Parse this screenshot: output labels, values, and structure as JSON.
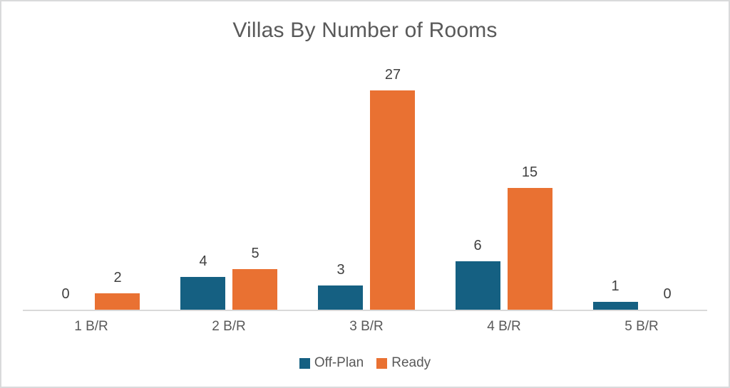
{
  "title": "Villas By Number of Rooms",
  "legend": {
    "items": [
      {
        "label": "Off-Plan",
        "color": "#156082"
      },
      {
        "label": "Ready",
        "color": "#E97132"
      }
    ]
  },
  "chart_data": {
    "type": "bar",
    "title": "Villas By Number of Rooms",
    "categories": [
      "1 B/R",
      "2 B/R",
      "3 B/R",
      "4 B/R",
      "5 B/R"
    ],
    "series": [
      {
        "name": "Off-Plan",
        "color": "#156082",
        "values": [
          0,
          4,
          3,
          6,
          1
        ]
      },
      {
        "name": "Ready",
        "color": "#E97132",
        "values": [
          2,
          5,
          27,
          15,
          0
        ]
      }
    ],
    "xlabel": "",
    "ylabel": "",
    "ylim": [
      0,
      30
    ],
    "grid": false,
    "data_labels": true,
    "legend_position": "bottom"
  },
  "colors": {
    "background": "#FFFFFF",
    "border": "#D9DADB",
    "axis_line": "#D9D9D9",
    "title_text": "#595959",
    "data_label_text": "#404040",
    "tick_label_text": "#595959"
  }
}
